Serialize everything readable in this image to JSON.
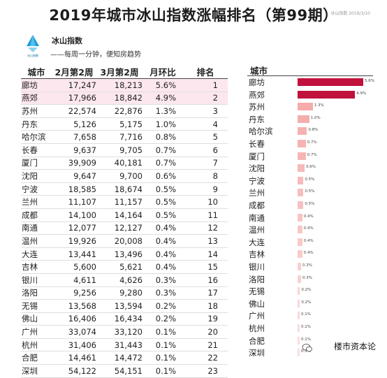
{
  "title": "2019年城市冰山指数涨幅排名（第99期）",
  "top_right_text": "冰山指数 2019/3/10",
  "brand": {
    "name": "冰山指数",
    "tagline": "——每周一分钟，便知房趋势",
    "logo_text": "冰山指数"
  },
  "watermark": "楼市资本论",
  "colors": {
    "bar_top": "#c0123c",
    "bar_light": "#f4a6a6",
    "highlight_row": "#fce7ee"
  },
  "table": {
    "headers": [
      "城市",
      "2月第2周",
      "3月第2周",
      "月环比",
      "排名"
    ],
    "rows": [
      [
        "廊坊",
        "17,247",
        "18,213",
        "5.6%",
        "1"
      ],
      [
        "燕郊",
        "17,966",
        "18,842",
        "4.9%",
        "2"
      ],
      [
        "苏州",
        "22,574",
        "22,876",
        "1.3%",
        "3"
      ],
      [
        "丹东",
        "5,126",
        "5,175",
        "1.0%",
        "4"
      ],
      [
        "哈尔滨",
        "7,658",
        "7,716",
        "0.8%",
        "5"
      ],
      [
        "长春",
        "9,637",
        "9,705",
        "0.7%",
        "6"
      ],
      [
        "厦门",
        "39,909",
        "40,181",
        "0.7%",
        "7"
      ],
      [
        "沈阳",
        "9,647",
        "9,700",
        "0.6%",
        "8"
      ],
      [
        "宁波",
        "18,585",
        "18,674",
        "0.5%",
        "9"
      ],
      [
        "兰州",
        "11,107",
        "11,157",
        "0.5%",
        "10"
      ],
      [
        "成都",
        "14,100",
        "14,164",
        "0.5%",
        "11"
      ],
      [
        "南通",
        "12,077",
        "12,127",
        "0.4%",
        "12"
      ],
      [
        "温州",
        "19,926",
        "20,008",
        "0.4%",
        "13"
      ],
      [
        "大连",
        "13,441",
        "13,496",
        "0.4%",
        "14"
      ],
      [
        "吉林",
        "5,600",
        "5,621",
        "0.4%",
        "15"
      ],
      [
        "银川",
        "4,611",
        "4,626",
        "0.3%",
        "16"
      ],
      [
        "洛阳",
        "9,256",
        "9,280",
        "0.3%",
        "17"
      ],
      [
        "无锡",
        "13,568",
        "13,594",
        "0.2%",
        "18"
      ],
      [
        "佛山",
        "16,406",
        "16,434",
        "0.2%",
        "19"
      ],
      [
        "广州",
        "33,074",
        "33,120",
        "0.1%",
        "20"
      ],
      [
        "杭州",
        "31,406",
        "31,443",
        "0.1%",
        "21"
      ],
      [
        "合肥",
        "14,461",
        "14,472",
        "0.1%",
        "22"
      ],
      [
        "深圳",
        "54,122",
        "54,151",
        "0.1%",
        "23"
      ]
    ]
  },
  "chart_data": {
    "type": "bar",
    "orientation": "horizontal",
    "header": "城市",
    "categories": [
      "廊坊",
      "燕郊",
      "苏州",
      "丹东",
      "哈尔滨",
      "长春",
      "厦门",
      "沈阳",
      "宁波",
      "兰州",
      "成都",
      "南通",
      "温州",
      "大连",
      "吉林",
      "银川",
      "洛阳",
      "无锡",
      "佛山",
      "广州",
      "杭州",
      "合肥",
      "深圳"
    ],
    "values": [
      5.6,
      4.9,
      1.3,
      1.0,
      0.8,
      0.7,
      0.7,
      0.6,
      0.5,
      0.5,
      0.5,
      0.4,
      0.4,
      0.4,
      0.4,
      0.3,
      0.3,
      0.2,
      0.2,
      0.1,
      0.1,
      0.1,
      0.1
    ],
    "value_labels": [
      "5.6%",
      "4.9%",
      "1.3%",
      "1.0%",
      "0.8%",
      "0.7%",
      "0.7%",
      "0.6%",
      "0.5%",
      "0.5%",
      "0.5%",
      "0.4%",
      "0.4%",
      "0.4%",
      "0.4%",
      "0.3%",
      "0.3%",
      "0.2%",
      "0.2%",
      "0.1%",
      "0.1%",
      "0.1%",
      "0.1%"
    ],
    "xlim": [
      0,
      5.6
    ],
    "title": "",
    "xlabel": "",
    "ylabel": "",
    "grid": false
  }
}
